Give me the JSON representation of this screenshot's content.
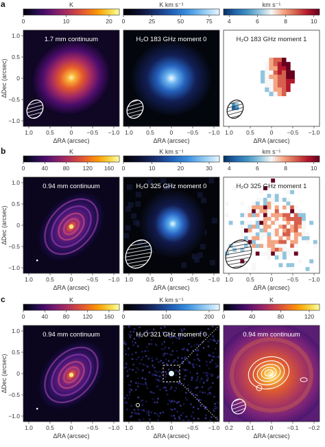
{
  "figure": {
    "rows": [
      {
        "label": "a",
        "colorbars": [
          {
            "unit": "K",
            "ticks": [
              "0",
              "10",
              "20"
            ],
            "cmap": "inferno"
          },
          {
            "unit": "K km s⁻¹",
            "ticks": [
              "0",
              "25",
              "50",
              "75"
            ],
            "cmap": "bluehot"
          },
          {
            "unit": "km s⁻¹",
            "ticks": [
              "4",
              "6",
              "8",
              "10"
            ],
            "cmap": "rdbu"
          }
        ],
        "panels": [
          {
            "title": "1.7 mm continuum",
            "kind": "cont-a"
          },
          {
            "title": "H₂O 183 GHz moment 0",
            "kind": "mom0-a"
          },
          {
            "title": "H₂O 183 GHz moment 1",
            "kind": "mom1-a"
          }
        ],
        "ylabel": "ΔDec (arcsec)",
        "yticks": [
          "1.0",
          "0.5",
          "0",
          "−0.5",
          "−1.0"
        ],
        "xticks": [
          "1.0",
          "0.5",
          "0",
          "−0.5",
          "−1.0"
        ],
        "xlabel": "ΔRA (arcsec)"
      },
      {
        "label": "b",
        "colorbars": [
          {
            "unit": "K",
            "ticks": [
              "0",
              "40",
              "80",
              "120",
              "160"
            ],
            "cmap": "inferno"
          },
          {
            "unit": "K km s⁻¹",
            "ticks": [
              "0",
              "10",
              "20",
              "30"
            ],
            "cmap": "bluehot"
          },
          {
            "unit": "km s⁻¹",
            "ticks": [
              "4",
              "6",
              "8",
              "10"
            ],
            "cmap": "rdbu"
          }
        ],
        "panels": [
          {
            "title": "0.94 mm continuum",
            "kind": "cont-b"
          },
          {
            "title": "H₂O 325 GHz moment 0",
            "kind": "mom0-b"
          },
          {
            "title": "H₂O 325 GHz moment 1",
            "kind": "mom1-b"
          }
        ],
        "ylabel": "ΔDec (arcsec)",
        "yticks": [
          "1.0",
          "0.5",
          "0",
          "−0.5",
          "−1.0"
        ],
        "xticks": [
          "1.0",
          "0.5",
          "0",
          "−0.5",
          "−1.0"
        ],
        "xlabel": "ΔRA (arcsec)"
      },
      {
        "label": "c",
        "colorbars": [
          {
            "unit": "K",
            "ticks": [
              "0",
              "40",
              "80",
              "120",
              "160"
            ],
            "cmap": "inferno"
          },
          {
            "unit": "K km s⁻¹",
            "ticks": [
              "0",
              "100",
              "200"
            ],
            "cmap": "bluehot"
          },
          {
            "unit": "K",
            "ticks": [
              "0",
              "40",
              "80",
              "120"
            ],
            "cmap": "inferno"
          }
        ],
        "panels": [
          {
            "title": "0.94 mm continuum",
            "kind": "cont-b"
          },
          {
            "title": "H₂O 321 GHz moment 0",
            "kind": "mom0-c"
          },
          {
            "title": "0.94 mm continuum",
            "kind": "zoom-c"
          }
        ],
        "ylabel": "ΔDec (arcsec)",
        "yticks": [
          "1.0",
          "0.5",
          "0",
          "−0.5",
          "−1.0"
        ],
        "xticks": [
          "1.0",
          "0.5",
          "0",
          "−0.5",
          "−1.0"
        ],
        "xticks_zoom": [
          "0.2",
          "0.1",
          "0",
          "−0.1",
          "−0.2"
        ],
        "xlabel": "ΔRA (arcsec)"
      }
    ]
  },
  "colors": {
    "inferno": [
      "#000004",
      "#1b0c41",
      "#4a0c6b",
      "#781c6d",
      "#a52c60",
      "#cf4446",
      "#ed6925",
      "#fb9b06",
      "#f7d13d",
      "#fcffa4"
    ],
    "bluehot": [
      "#000000",
      "#0b1030",
      "#1a2f6e",
      "#1f5fb5",
      "#3a8fe0",
      "#8cc7f2",
      "#e8f6ff"
    ],
    "rdbu": [
      "#053061",
      "#2166ac",
      "#4393c3",
      "#92c5de",
      "#f7f7f7",
      "#f4a582",
      "#d6604d",
      "#b2182b",
      "#67001f"
    ]
  }
}
